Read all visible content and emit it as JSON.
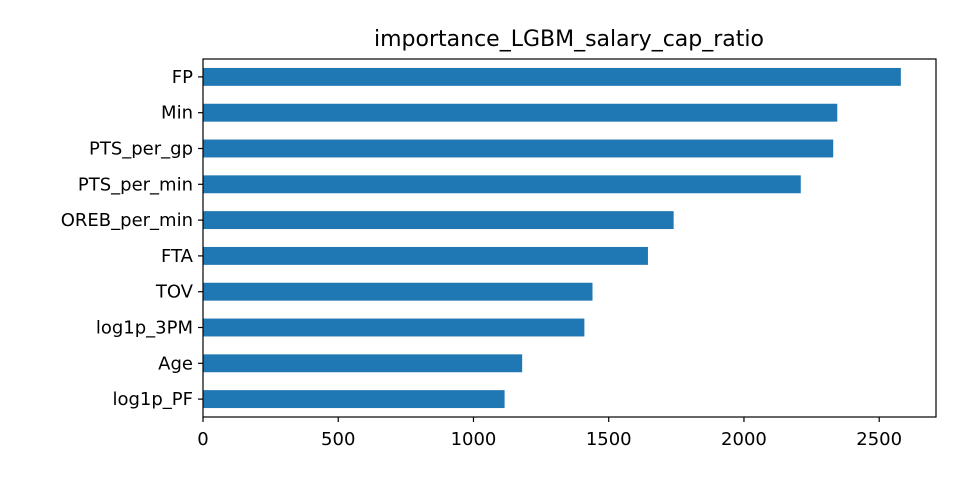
{
  "chart_data": {
    "type": "bar",
    "orientation": "horizontal",
    "title": "importance_LGBM_salary_cap_ratio",
    "xlabel": "",
    "ylabel": "",
    "categories": [
      "FP",
      "Min",
      "PTS_per_gp",
      "PTS_per_min",
      "OREB_per_min",
      "FTA",
      "TOV",
      "log1p_3PM",
      "Age",
      "log1p_PF"
    ],
    "values": [
      2580,
      2345,
      2330,
      2210,
      1740,
      1645,
      1440,
      1410,
      1180,
      1115
    ],
    "xlim": [
      0,
      2710
    ],
    "xticks": [
      0,
      500,
      1000,
      1500,
      2000,
      2500
    ],
    "bar_color": "#1f77b4",
    "grid": false,
    "legend": "none"
  }
}
